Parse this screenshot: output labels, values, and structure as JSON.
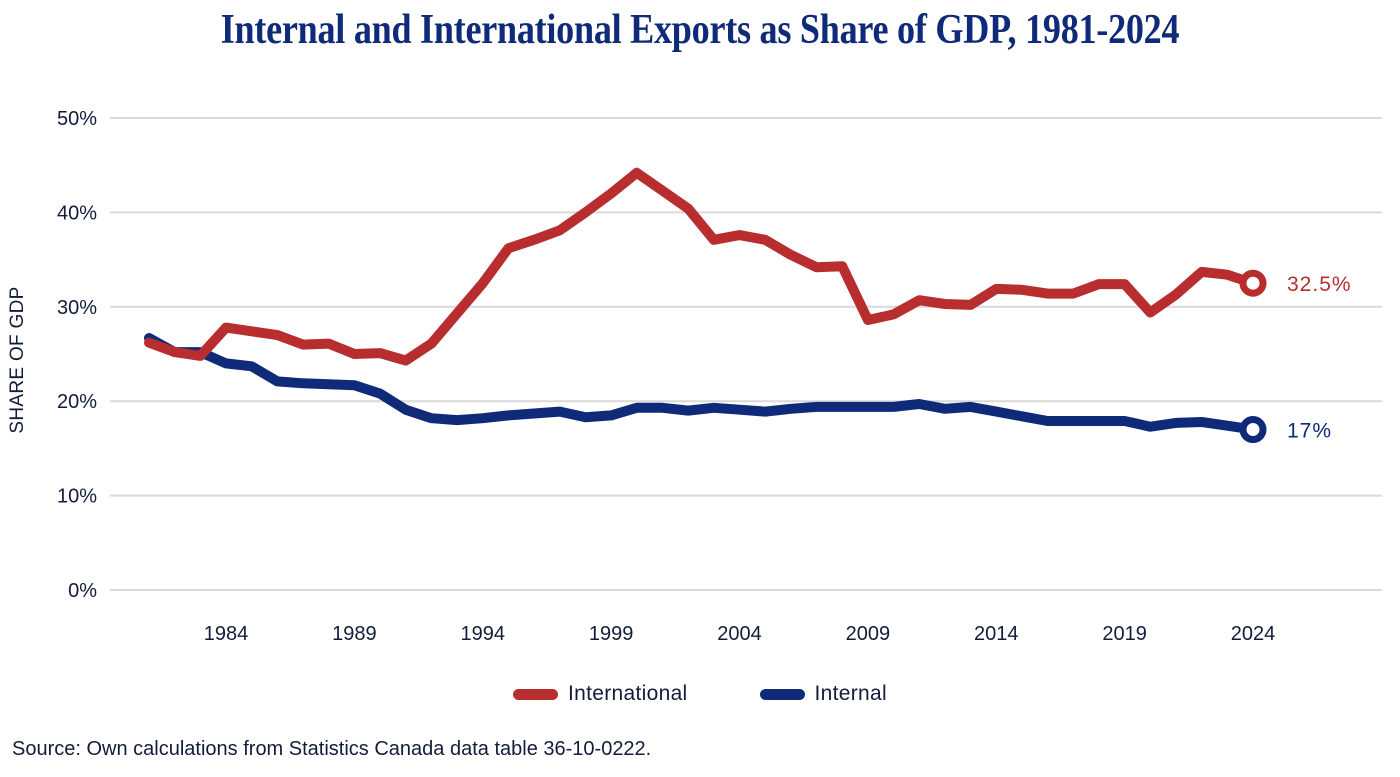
{
  "title": "Internal and International Exports as Share of GDP, 1981-2024",
  "source": "Source: Own calculations from Statistics Canada data table 36-10-0222.",
  "colors": {
    "international": "#b82e2e",
    "internal": "#0f2a78",
    "grid": "#d9d9d9",
    "text": "#131c3a"
  },
  "chart_data": {
    "type": "line",
    "title": "Internal and International Exports as Share of GDP, 1981-2024",
    "xlabel": "",
    "ylabel": "SHARE OF GDP",
    "x": [
      1981,
      1982,
      1983,
      1984,
      1985,
      1986,
      1987,
      1988,
      1989,
      1990,
      1991,
      1992,
      1993,
      1994,
      1995,
      1996,
      1997,
      1998,
      1999,
      2000,
      2001,
      2002,
      2003,
      2004,
      2005,
      2006,
      2007,
      2008,
      2009,
      2010,
      2011,
      2012,
      2013,
      2014,
      2015,
      2016,
      2017,
      2018,
      2019,
      2020,
      2021,
      2022,
      2023,
      2024
    ],
    "xticks": [
      1984,
      1989,
      1994,
      1999,
      2004,
      2009,
      2014,
      2019,
      2024
    ],
    "xtick_labels": [
      "1984",
      "1989",
      "1994",
      "1999",
      "2004",
      "2009",
      "2014",
      "2019",
      "2024"
    ],
    "xlim": [
      1979.9,
      2029.4
    ],
    "ylim": [
      0,
      50
    ],
    "yticks": [
      0,
      10,
      20,
      30,
      40,
      50
    ],
    "ytick_labels": [
      "0%",
      "10%",
      "20%",
      "30%",
      "40%",
      "50%"
    ],
    "grid": true,
    "legend_position": "bottom-center",
    "series": [
      {
        "name": "International",
        "key": "international",
        "values": [
          26.2,
          25.2,
          24.8,
          27.8,
          27.4,
          27.0,
          26.0,
          26.1,
          25.0,
          25.1,
          24.3,
          26.1,
          29.3,
          32.5,
          36.2,
          37.1,
          38.1,
          40.0,
          42.0,
          44.2,
          42.3,
          40.4,
          37.1,
          37.6,
          37.1,
          35.5,
          34.2,
          34.3,
          28.6,
          29.2,
          30.7,
          30.3,
          30.2,
          31.9,
          31.8,
          31.4,
          31.4,
          32.4,
          32.4,
          29.4,
          31.3,
          33.7,
          33.4,
          32.5
        ],
        "end_label": "32.5%"
      },
      {
        "name": "Internal",
        "key": "internal",
        "values": [
          26.7,
          25.2,
          25.2,
          24.0,
          23.7,
          22.1,
          21.9,
          21.8,
          21.7,
          20.8,
          19.1,
          18.2,
          18.0,
          18.2,
          18.5,
          18.7,
          18.9,
          18.3,
          18.5,
          19.3,
          19.3,
          19.0,
          19.3,
          19.1,
          18.9,
          19.2,
          19.4,
          19.4,
          19.4,
          19.4,
          19.7,
          19.2,
          19.4,
          18.9,
          18.4,
          17.9,
          17.9,
          17.9,
          17.9,
          17.3,
          17.7,
          17.8,
          17.4,
          17.0
        ],
        "end_label": "17%"
      }
    ],
    "legend": [
      "International",
      "Internal"
    ]
  }
}
